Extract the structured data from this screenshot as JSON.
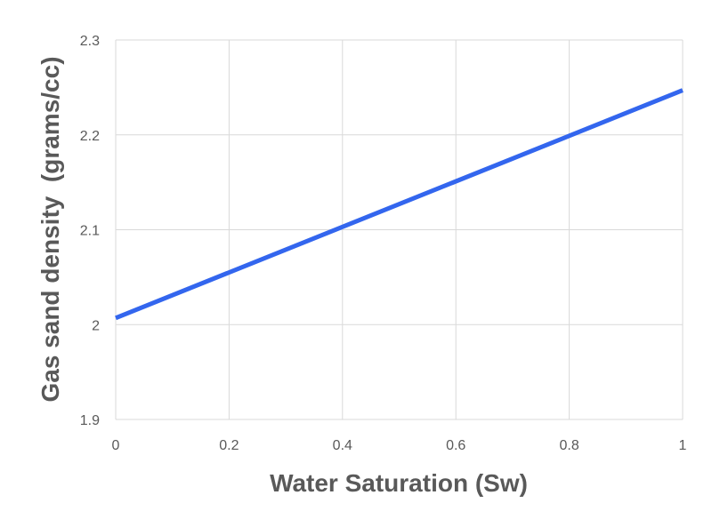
{
  "chart_data": {
    "type": "line",
    "title": "",
    "xlabel": "Water Saturation (Sw)",
    "ylabel": "Gas sand density  (grams/cc)",
    "xlim": [
      0,
      1
    ],
    "ylim": [
      1.9,
      2.3
    ],
    "xticks": [
      0,
      0.2,
      0.4,
      0.6,
      0.8,
      1
    ],
    "xtick_labels": [
      "0",
      "0.2",
      "0.4",
      "0.6",
      "0.8",
      "1"
    ],
    "yticks": [
      1.9,
      2.0,
      2.1,
      2.2,
      2.3
    ],
    "ytick_labels": [
      "1.9",
      "2",
      "2.1",
      "2.2",
      "2.3"
    ],
    "grid": true,
    "series": [
      {
        "name": "Gas sand density",
        "color": "#3366ee",
        "x": [
          0,
          1
        ],
        "y": [
          2.007,
          2.247
        ]
      }
    ]
  }
}
